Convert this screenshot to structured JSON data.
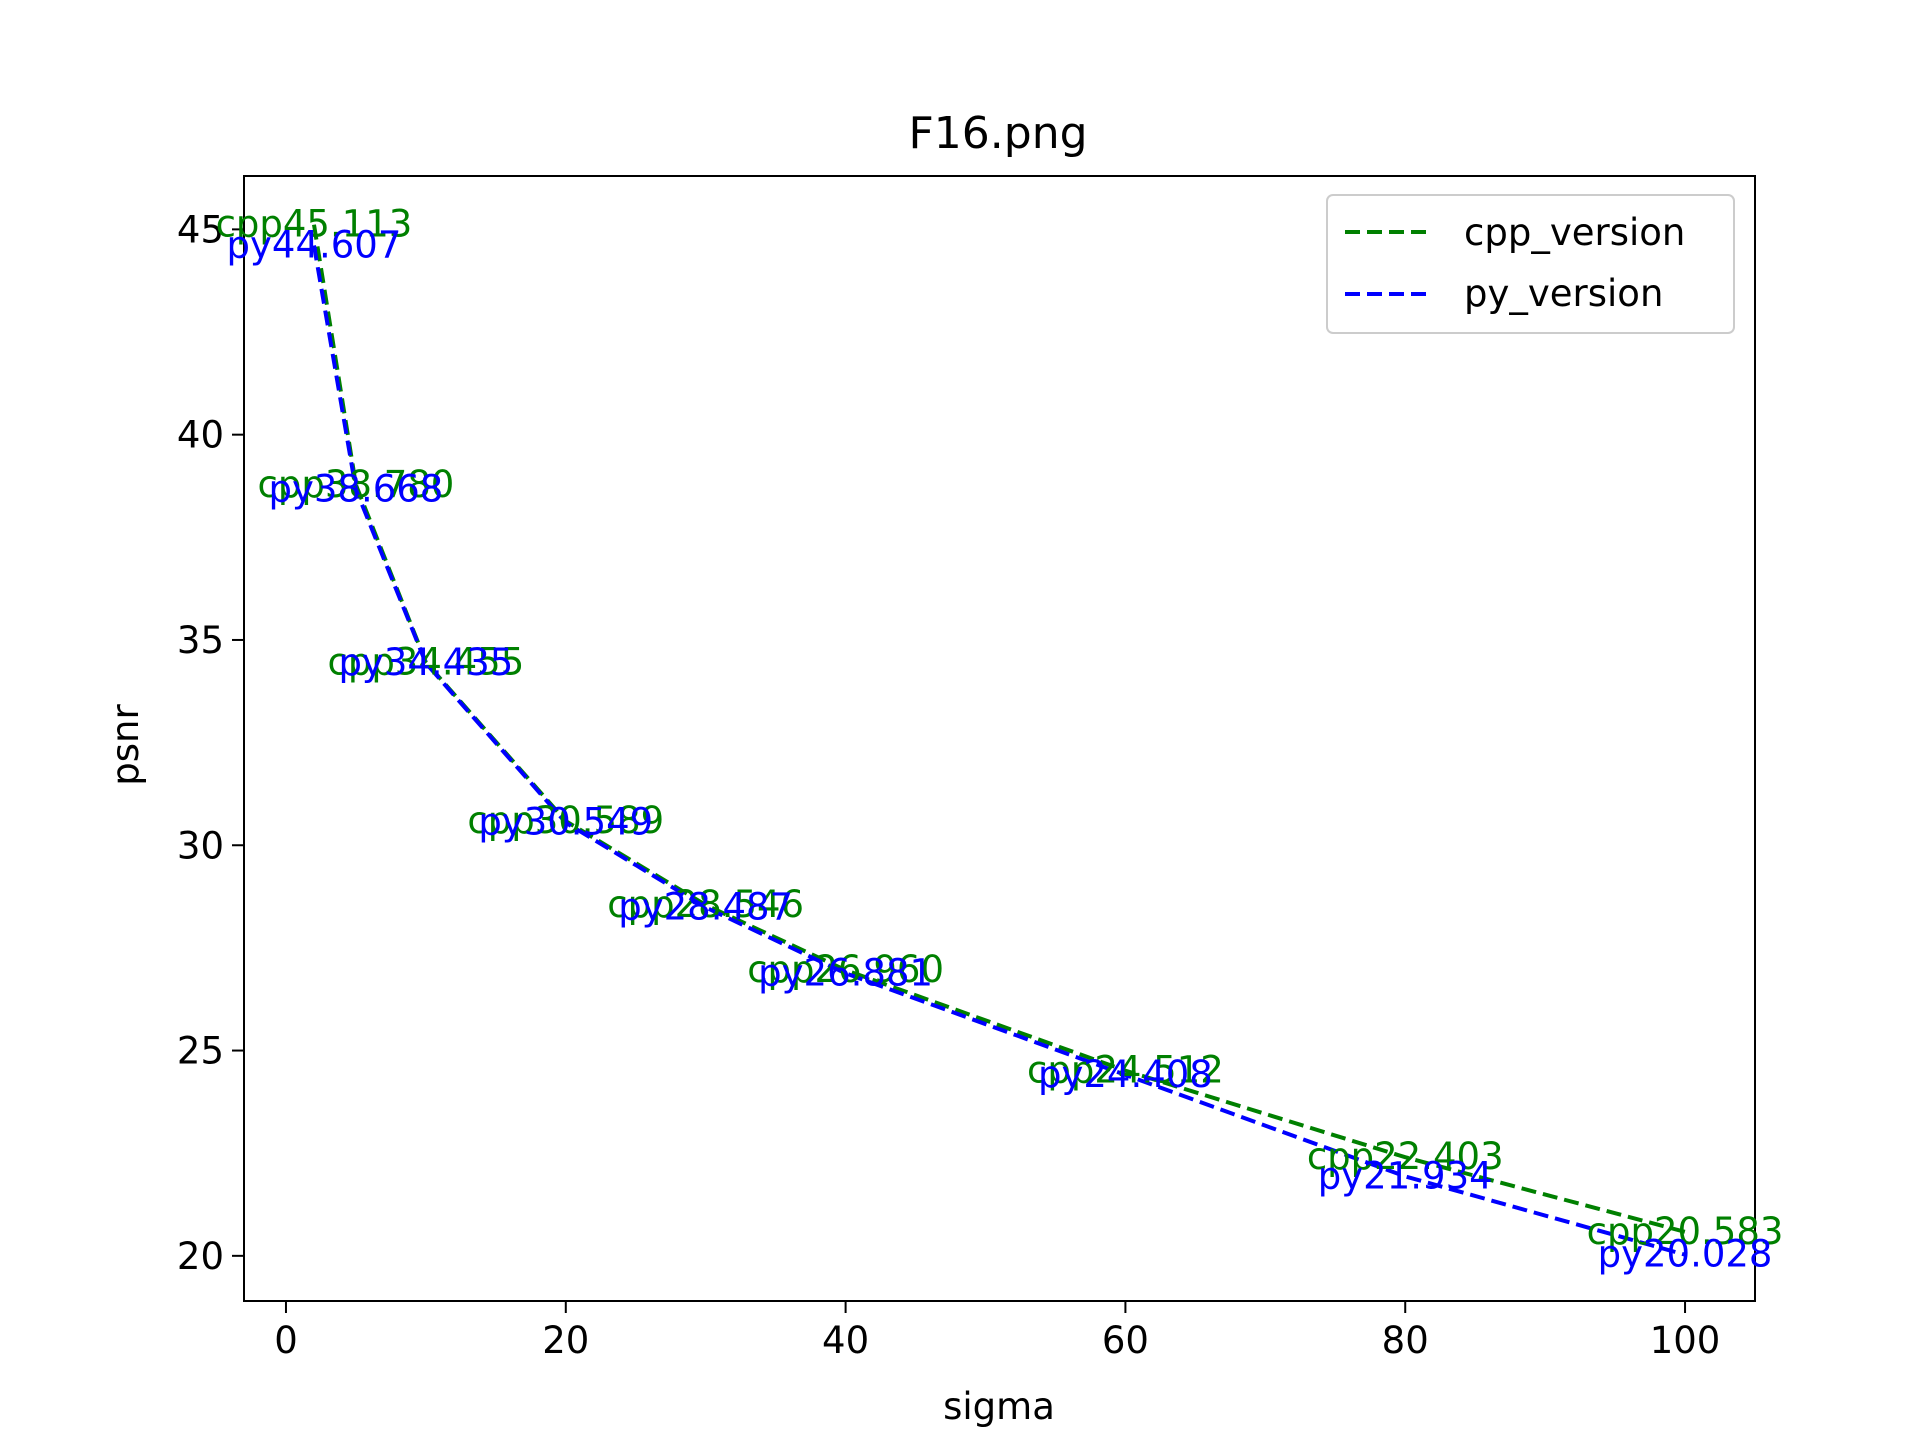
{
  "chart_data": {
    "type": "line",
    "title": "F16.png",
    "xlabel": "sigma",
    "ylabel": "psnr",
    "xlim": [
      -3,
      105
    ],
    "ylim": [
      18.9,
      46.3
    ],
    "xticks": [
      0,
      20,
      40,
      60,
      80,
      100
    ],
    "yticks": [
      20,
      25,
      30,
      35,
      40,
      45
    ],
    "xtick_labels": [
      "0",
      "20",
      "40",
      "60",
      "80",
      "100"
    ],
    "ytick_labels": [
      "20",
      "25",
      "30",
      "35",
      "40",
      "45"
    ],
    "grid": false,
    "legend_position": "top-right",
    "x": [
      2,
      5,
      10,
      20,
      30,
      40,
      60,
      80,
      100
    ],
    "series": [
      {
        "name": "cpp_version",
        "color": "#008000",
        "line_style": "dashed",
        "values": [
          45.113,
          38.78,
          34.455,
          30.589,
          28.546,
          26.96,
          24.512,
          22.403,
          20.583
        ],
        "point_labels": [
          "cpp45.113",
          "cpp38.780",
          "cpp34.455",
          "cpp30.589",
          "cpp28.546",
          "cpp26.960",
          "cpp24.512",
          "cpp22.403",
          "cpp20.583"
        ]
      },
      {
        "name": "py_version",
        "color": "#0000ff",
        "line_style": "dashed",
        "values": [
          44.607,
          38.668,
          34.435,
          30.549,
          28.487,
          26.881,
          24.408,
          21.934,
          20.028
        ],
        "point_labels": [
          "py44.607",
          "py38.668",
          "py34.435",
          "py30.549",
          "py28.487",
          "py26.881",
          "py24.408",
          "py21.934",
          "py20.028"
        ]
      }
    ]
  }
}
